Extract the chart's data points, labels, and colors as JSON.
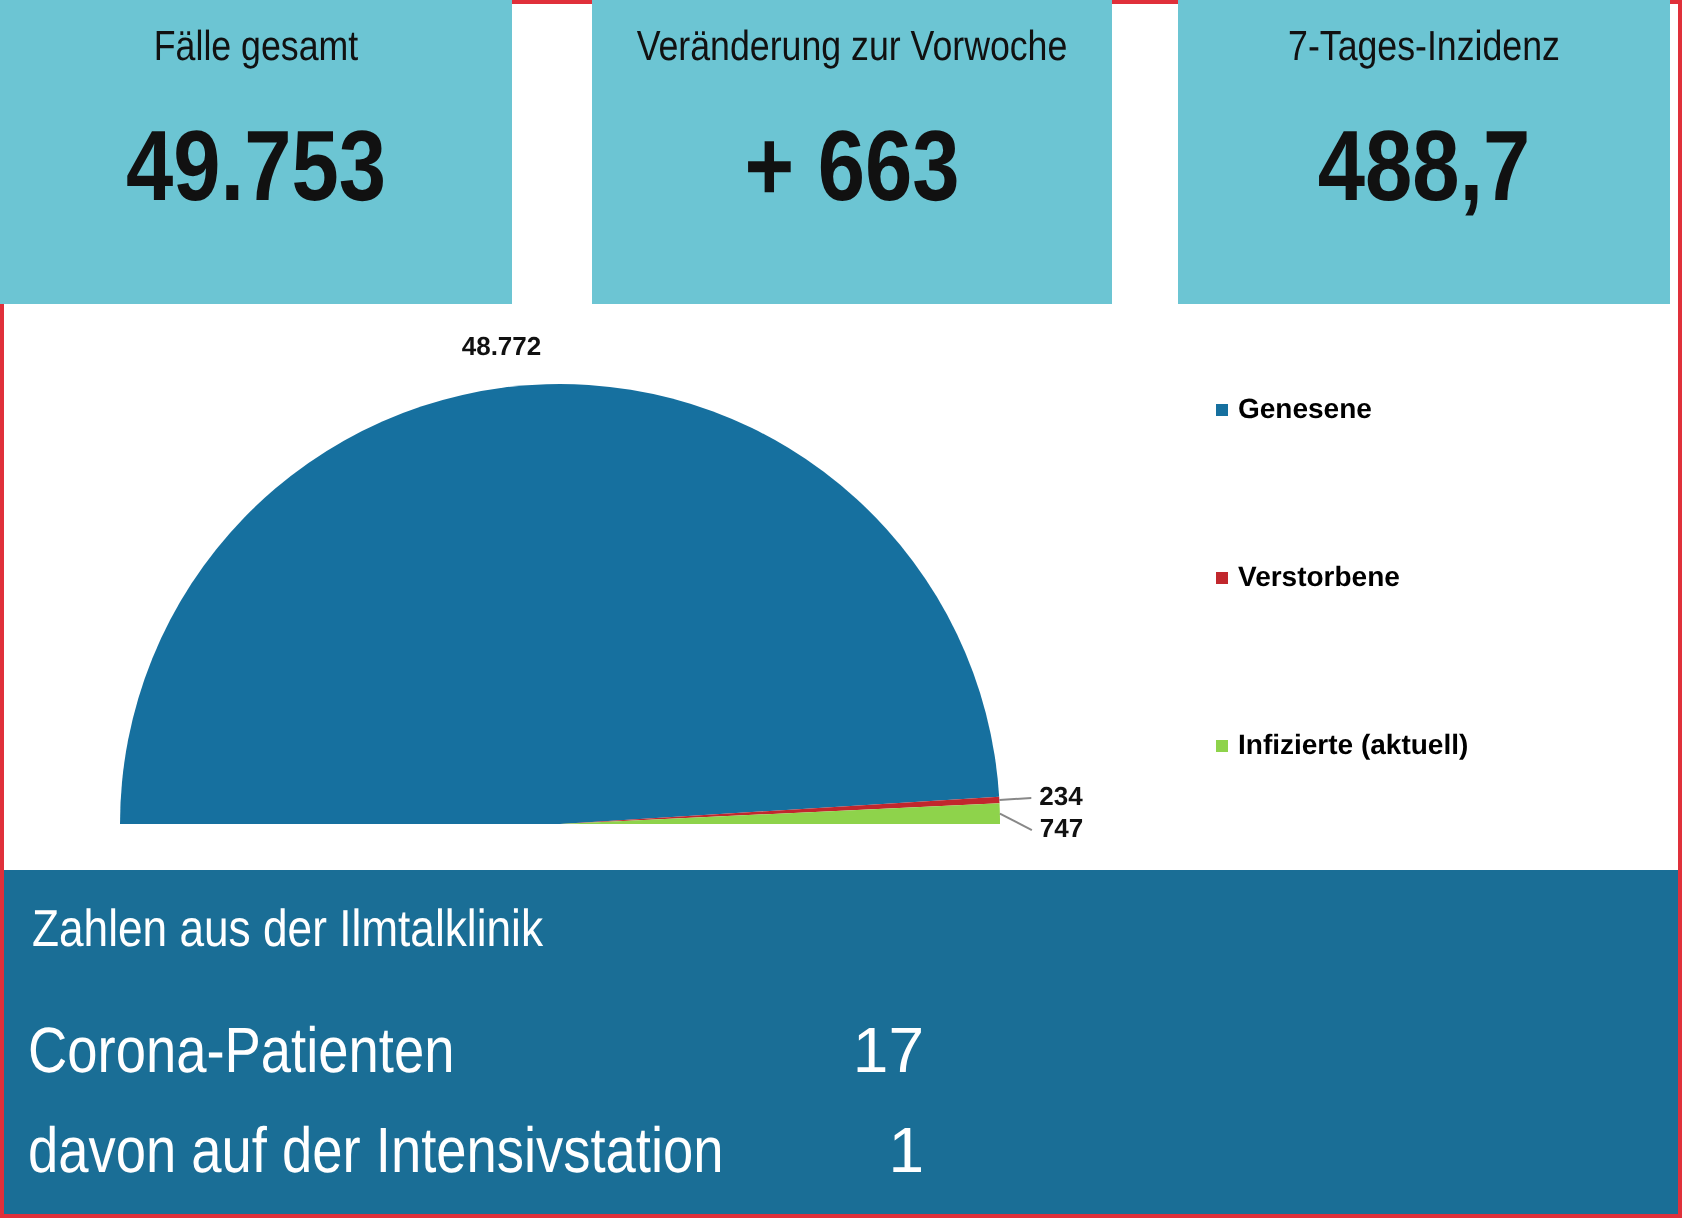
{
  "chart_data": [
    {
      "type": "other",
      "title": "Fälle gesamt",
      "annotations": [
        "49.753"
      ]
    },
    {
      "type": "other",
      "title": "Veränderung zur Vorwoche",
      "annotations": [
        "+ 663"
      ]
    },
    {
      "type": "other",
      "title": "7-Tages-Inzidenz",
      "annotations": [
        "488,7"
      ]
    },
    {
      "type": "pie",
      "categories": [
        "Genesene",
        "Verstorbene",
        "Infizierte (aktuell)"
      ],
      "values": [
        48772,
        234,
        747
      ],
      "colors": [
        "#16709f",
        "#c1272d",
        "#8ed34b"
      ],
      "value_labels": [
        "48.772",
        "234",
        "747"
      ],
      "legend": "right"
    },
    {
      "type": "other",
      "title": "Zahlen aus der Ilmtalklinik",
      "annotations": [
        "Corona-Patienten",
        "17",
        "davon auf der Intensivstation",
        "1"
      ]
    }
  ]
}
